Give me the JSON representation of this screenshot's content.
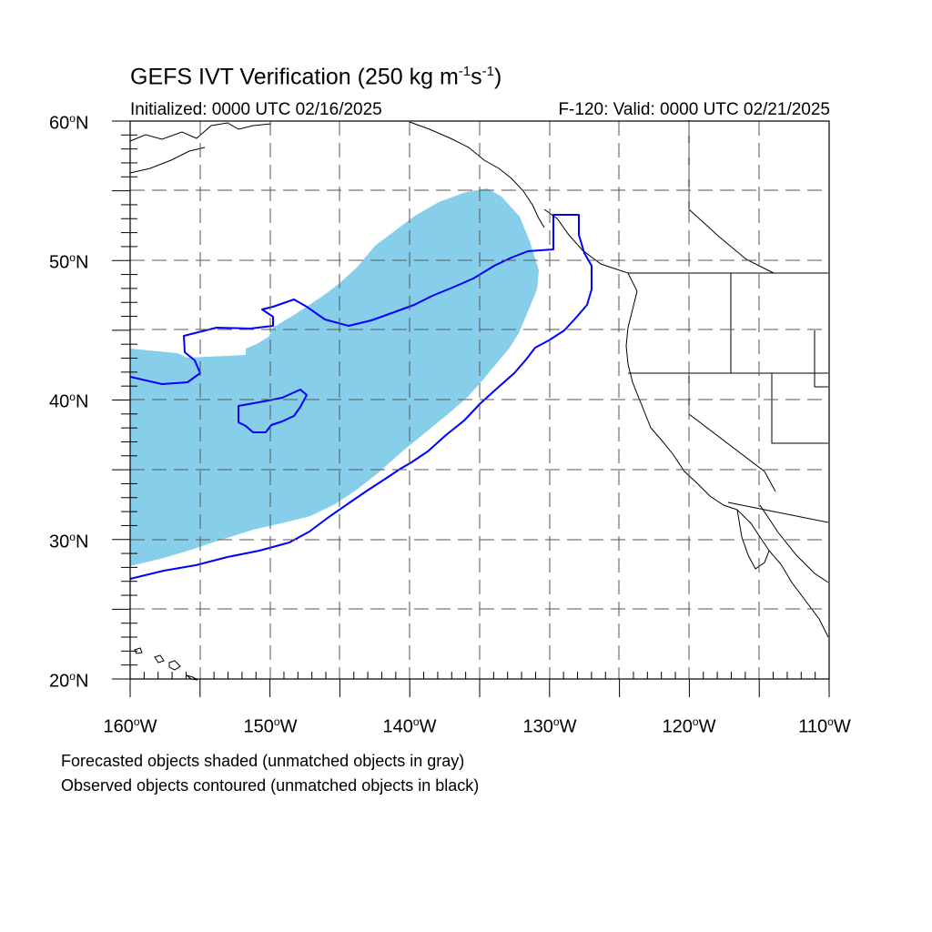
{
  "header": {
    "title_main": "GEFS IVT Verification (250 kg m",
    "title_sup1": "-1",
    "title_mid": "s",
    "title_sup2": "-1",
    "title_end": ")",
    "initialized": "Initialized: 0000 UTC 02/16/2025",
    "valid": "F-120: Valid: 0000 UTC 02/21/2025"
  },
  "axes": {
    "lat_labels": [
      {
        "deg": "60",
        "suffix": "N"
      },
      {
        "deg": "50",
        "suffix": "N"
      },
      {
        "deg": "40",
        "suffix": "N"
      },
      {
        "deg": "30",
        "suffix": "N"
      },
      {
        "deg": "20",
        "suffix": "N"
      }
    ],
    "lon_labels": [
      {
        "deg": "160",
        "suffix": "W"
      },
      {
        "deg": "150",
        "suffix": "W"
      },
      {
        "deg": "140",
        "suffix": "W"
      },
      {
        "deg": "130",
        "suffix": "W"
      },
      {
        "deg": "120",
        "suffix": "W"
      },
      {
        "deg": "110",
        "suffix": "W"
      }
    ],
    "lon_range": [
      -160,
      -110
    ],
    "lat_range": [
      20,
      60
    ]
  },
  "legend": {
    "line1": "Forecasted objects shaded (unmatched objects in gray)",
    "line2": "Observed objects contoured (unmatched objects in black)"
  },
  "colors": {
    "forecast_fill": "#87ceeb",
    "observed_contour": "#0000ff",
    "coastline": "#000000",
    "grid": "#555555"
  }
}
